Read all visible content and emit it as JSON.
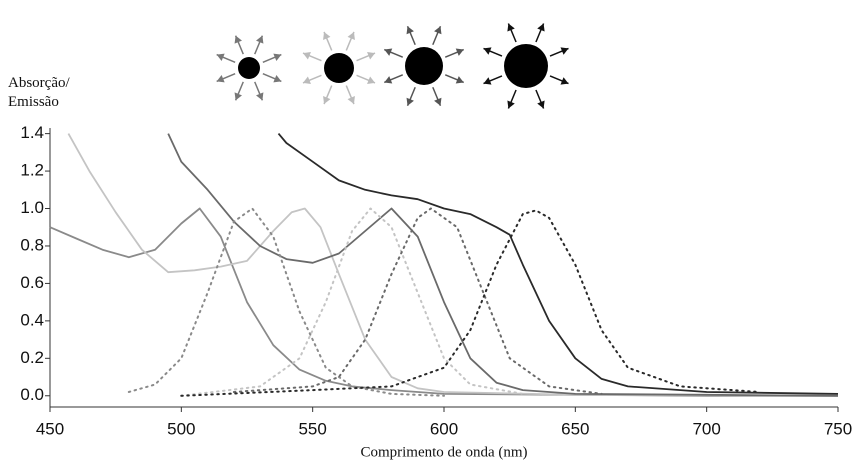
{
  "chart_data": {
    "type": "line",
    "ylabel": "Absorção/ Emissão",
    "xlabel": "Comprimento de onda (nm)",
    "xlim": [
      450,
      750
    ],
    "xticks": [
      450,
      500,
      550,
      600,
      650,
      700,
      750
    ],
    "ylim": [
      -0.06,
      1.43
    ],
    "yticks": [
      {
        "value": 0,
        "label": "0.0"
      },
      0.2,
      0.4,
      0.6,
      0.8,
      {
        "value": 1,
        "label": "1.0"
      },
      1.2,
      1.4
    ],
    "series": [
      {
        "color": "#8a8a8a",
        "style": "solid",
        "x": [
          450,
          460,
          470,
          480,
          490,
          500,
          507,
          515,
          525,
          535,
          545,
          555,
          565,
          580,
          600,
          650,
          700,
          750
        ],
        "values": [
          0.9,
          0.84,
          0.78,
          0.74,
          0.78,
          0.92,
          1.0,
          0.85,
          0.5,
          0.27,
          0.14,
          0.08,
          0.05,
          0.03,
          0.01,
          0.005,
          0,
          0
        ]
      },
      {
        "color": "#c4c4c4",
        "style": "solid",
        "x": [
          457,
          465,
          475,
          485,
          495,
          505,
          515,
          525,
          535,
          542,
          547,
          553,
          560,
          570,
          580,
          590,
          600,
          650,
          750
        ],
        "values": [
          1.4,
          1.2,
          0.98,
          0.78,
          0.66,
          0.67,
          0.69,
          0.72,
          0.88,
          0.98,
          1.0,
          0.9,
          0.65,
          0.3,
          0.1,
          0.04,
          0.02,
          0.005,
          0
        ]
      },
      {
        "color": "#6a6a6a",
        "style": "solid",
        "x": [
          495,
          500,
          510,
          520,
          530,
          540,
          550,
          560,
          570,
          580,
          590,
          600,
          610,
          620,
          630,
          650,
          700,
          750
        ],
        "values": [
          1.4,
          1.25,
          1.1,
          0.93,
          0.8,
          0.73,
          0.71,
          0.76,
          0.88,
          1.0,
          0.85,
          0.5,
          0.2,
          0.07,
          0.03,
          0.01,
          0.005,
          0
        ]
      },
      {
        "color": "#2a2a2a",
        "style": "solid",
        "x": [
          537,
          540,
          550,
          560,
          570,
          580,
          590,
          600,
          610,
          620,
          625,
          630,
          640,
          650,
          660,
          670,
          700,
          750
        ],
        "values": [
          1.4,
          1.35,
          1.25,
          1.15,
          1.1,
          1.07,
          1.05,
          1.0,
          0.97,
          0.9,
          0.86,
          0.7,
          0.4,
          0.2,
          0.09,
          0.05,
          0.02,
          0.01
        ]
      },
      {
        "color": "#8a8a8a",
        "style": "dotted",
        "x": [
          480,
          490,
          500,
          510,
          520,
          527,
          535,
          545,
          555,
          565,
          580,
          600
        ],
        "values": [
          0.02,
          0.06,
          0.2,
          0.55,
          0.93,
          1.0,
          0.85,
          0.45,
          0.15,
          0.05,
          0.01,
          0
        ]
      },
      {
        "color": "#c4c4c4",
        "style": "dotted",
        "x": [
          500,
          530,
          545,
          555,
          565,
          572,
          580,
          590,
          600,
          610,
          630
        ],
        "values": [
          0,
          0.05,
          0.2,
          0.5,
          0.88,
          1.0,
          0.9,
          0.55,
          0.2,
          0.06,
          0.01
        ]
      },
      {
        "color": "#6a6a6a",
        "style": "dotted",
        "x": [
          520,
          550,
          560,
          570,
          580,
          590,
          595,
          605,
          615,
          625,
          640,
          660
        ],
        "values": [
          0.02,
          0.05,
          0.1,
          0.3,
          0.65,
          0.95,
          1.0,
          0.9,
          0.55,
          0.2,
          0.05,
          0.01
        ]
      },
      {
        "color": "#2a2a2a",
        "style": "dotted",
        "x": [
          500,
          550,
          580,
          600,
          610,
          620,
          630,
          635,
          640,
          650,
          660,
          670,
          690,
          720
        ],
        "values": [
          0,
          0.03,
          0.05,
          0.15,
          0.35,
          0.7,
          0.97,
          0.99,
          0.95,
          0.7,
          0.35,
          0.15,
          0.05,
          0.02
        ]
      }
    ]
  }
}
